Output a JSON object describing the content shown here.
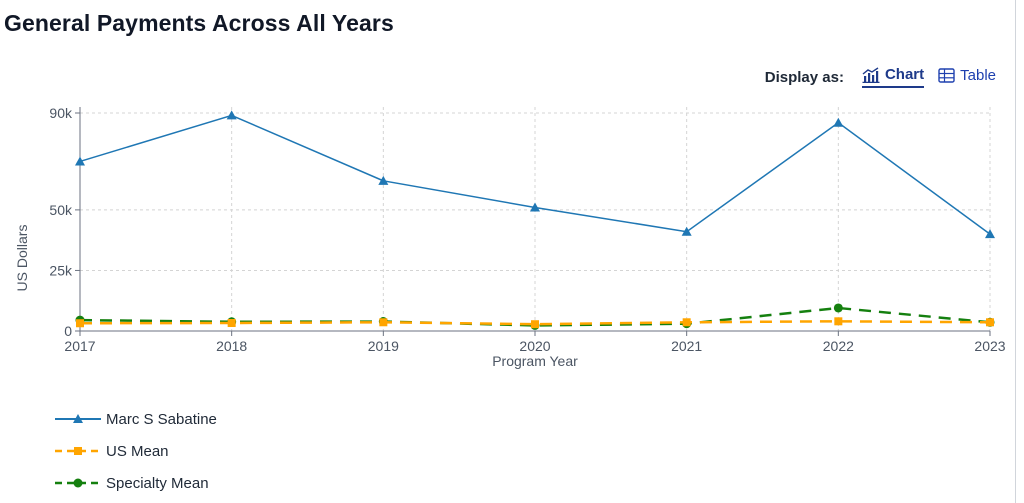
{
  "page": {
    "title": "General Payments Across All Years",
    "display_as_label": "Display as:",
    "toggles": [
      {
        "label": "Chart",
        "active": true,
        "icon": "chart-icon"
      },
      {
        "label": "Table",
        "active": false,
        "icon": "table-icon"
      }
    ]
  },
  "chart_data": {
    "type": "line",
    "title": "",
    "xlabel": "Program Year",
    "ylabel": "US Dollars",
    "categories": [
      "2017",
      "2018",
      "2019",
      "2020",
      "2021",
      "2022",
      "2023"
    ],
    "ylim": [
      0,
      90000
    ],
    "yticks": [
      0,
      25000,
      50000,
      90000
    ],
    "ytick_labels": [
      "0",
      "25k",
      "50k",
      "90k"
    ],
    "grid": true,
    "legend_position": "bottom-left",
    "series": [
      {
        "name": "Marc S Sabatine",
        "values": [
          70000,
          89000,
          62000,
          51000,
          41000,
          86000,
          40000
        ],
        "color": "#1f77b4",
        "marker": "triangle",
        "dash": "solid"
      },
      {
        "name": "US Mean",
        "values": [
          3200,
          3300,
          3600,
          2800,
          3600,
          4000,
          3600
        ],
        "color": "#ffa500",
        "marker": "square",
        "dash": "dashed"
      },
      {
        "name": "Specialty Mean",
        "values": [
          4500,
          3800,
          3900,
          2300,
          3000,
          9500,
          3600
        ],
        "color": "#15800f",
        "marker": "circle",
        "dash": "dashed"
      }
    ]
  }
}
